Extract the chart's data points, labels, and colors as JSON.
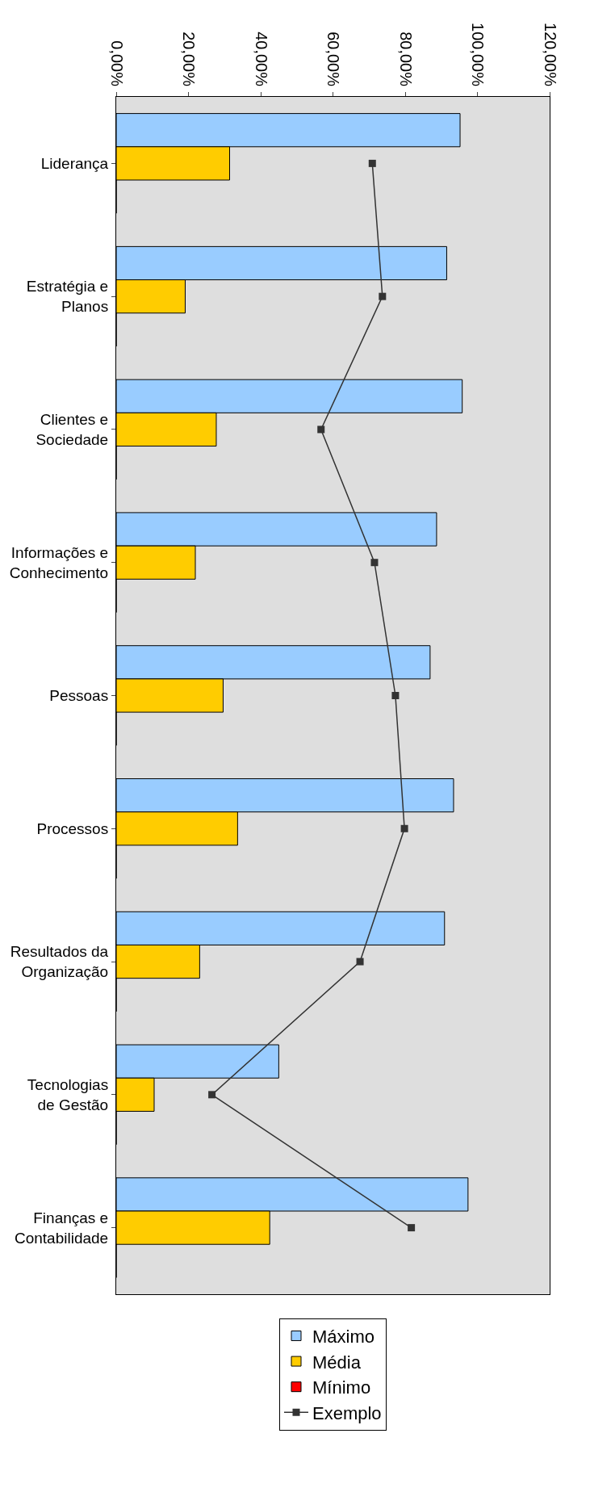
{
  "chart_data": {
    "type": "bar",
    "orientation": "horizontal",
    "categories": [
      "Liderança",
      "Estratégia e\nPlanos",
      "Clientes e\nSociedade",
      "Informações e\nConhecimento",
      "Pessoas",
      "Processos",
      "Resultados da\nOrganização",
      "Tecnologias\nde Gestão",
      "Finanças e\nContabilidade"
    ],
    "series": [
      {
        "name": "Máximo",
        "color": "#99ccff",
        "values": [
          95.2,
          91.5,
          95.8,
          88.7,
          86.9,
          93.4,
          90.9,
          45.0,
          97.4
        ]
      },
      {
        "name": "Média",
        "color": "#ffcc00",
        "values": [
          31.4,
          19.1,
          27.7,
          21.9,
          29.6,
          33.6,
          23.1,
          10.5,
          42.5
        ]
      },
      {
        "name": "Mínimo",
        "color": "#ff0000",
        "values": [
          0,
          0,
          0,
          0,
          0,
          0,
          0,
          0,
          0
        ]
      },
      {
        "name": "Exemplo",
        "type": "line",
        "color": "#333333",
        "marker": "square",
        "line_style": "solid",
        "values": [
          70.9,
          73.7,
          56.7,
          71.5,
          77.3,
          79.8,
          67.5,
          26.5,
          81.7
        ]
      }
    ],
    "xlim": [
      0,
      120
    ],
    "xticks": [
      {
        "value": 0,
        "label": "0,00%"
      },
      {
        "value": 20,
        "label": "20,00%"
      },
      {
        "value": 40,
        "label": "40,00%"
      },
      {
        "value": 60,
        "label": "60,00%"
      },
      {
        "value": 80,
        "label": "80,00%"
      },
      {
        "value": 100,
        "label": "100,00%"
      },
      {
        "value": 120,
        "label": "120,00%"
      }
    ],
    "grid": false,
    "legend": "bottom"
  }
}
